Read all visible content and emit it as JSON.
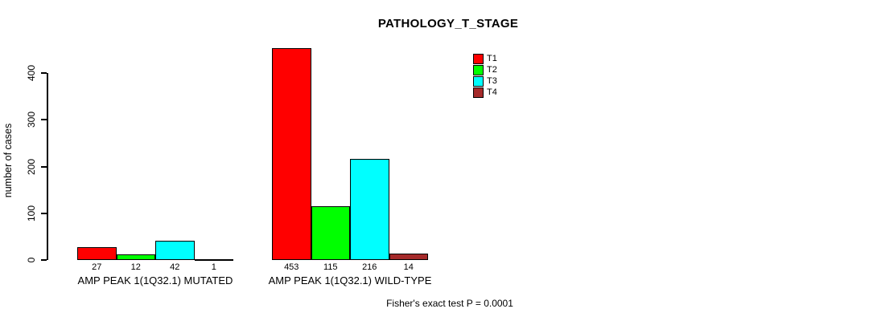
{
  "chart_data": {
    "type": "bar",
    "title": "PATHOLOGY_T_STAGE",
    "ylabel": "number of cases",
    "xlabel": "",
    "ylim": [
      0,
      400
    ],
    "yticks": [
      0,
      100,
      200,
      300,
      400
    ],
    "grid": false,
    "legend_position": "top-right",
    "categories": [
      "AMP PEAK 1(1Q32.1) MUTATED",
      "AMP PEAK 1(1Q32.1) WILD-TYPE"
    ],
    "groups": [
      {
        "label": "AMP PEAK 1(1Q32.1) MUTATED",
        "values": [
          27,
          12,
          42,
          1
        ]
      },
      {
        "label": "AMP PEAK 1(1Q32.1) WILD-TYPE",
        "values": [
          453,
          115,
          216,
          14
        ]
      }
    ],
    "series": [
      {
        "name": "T1",
        "color": "#FF0000"
      },
      {
        "name": "T2",
        "color": "#00FF00"
      },
      {
        "name": "T3",
        "color": "#00FFFF"
      },
      {
        "name": "T4",
        "color": "#A52A2A"
      }
    ],
    "footnote": "Fisher's exact test P = 0.0001",
    "axis_color": "#000000",
    "value_labels_shown": true
  }
}
